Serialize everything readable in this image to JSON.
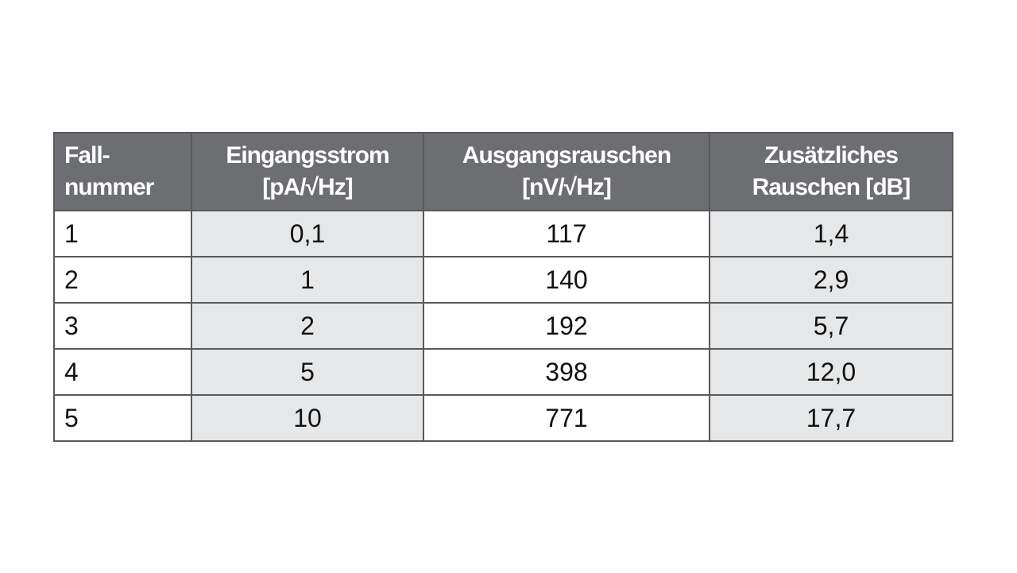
{
  "table": {
    "header": [
      [
        "Fall-",
        "nummer"
      ],
      [
        "Eingangsstrom",
        "[pA/√Hz]"
      ],
      [
        "Ausgangsrauschen",
        "[nV/√Hz]"
      ],
      [
        "Zusätzliches",
        "Rauschen [dB]"
      ]
    ],
    "rows": [
      [
        "1",
        "0,1",
        "117",
        "1,4"
      ],
      [
        "2",
        "1",
        "140",
        "2,9"
      ],
      [
        "3",
        "2",
        "192",
        "5,7"
      ],
      [
        "4",
        "5",
        "398",
        "12,0"
      ],
      [
        "5",
        "10",
        "771",
        "17,7"
      ]
    ]
  }
}
